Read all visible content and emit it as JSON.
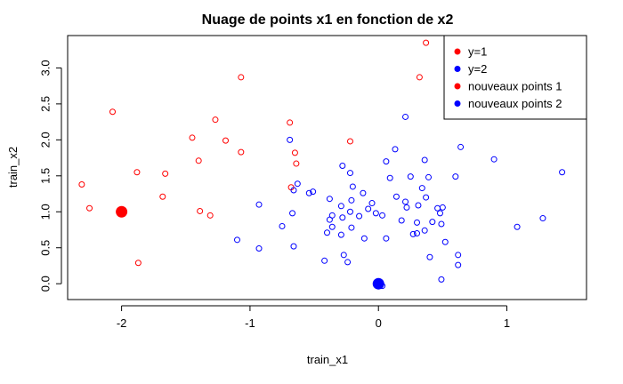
{
  "chart_data": {
    "type": "scatter",
    "title": "Nuage de points x1 en fonction de x2",
    "xlabel": "train_x1",
    "ylabel": "train_x2",
    "xlim": [
      -2.42,
      1.62
    ],
    "ylim": [
      -0.22,
      3.45
    ],
    "xticks": [
      -2,
      -1,
      0,
      1
    ],
    "xtick_labels": [
      "-2",
      "-1",
      "0",
      "1"
    ],
    "yticks": [
      0.0,
      0.5,
      1.0,
      1.5,
      2.0,
      2.5,
      3.0
    ],
    "ytick_labels": [
      "0.0",
      "0.5",
      "1.0",
      "1.5",
      "2.0",
      "2.5",
      "3.0"
    ],
    "grid": false,
    "legend_position": "top-right",
    "legend": [
      {
        "label": "y=1",
        "color": "#ff0000"
      },
      {
        "label": "y=2",
        "color": "#0000ff"
      },
      {
        "label": "nouveaux points 1",
        "color": "#ff0000"
      },
      {
        "label": "nouveaux points 2",
        "color": "#0000ff"
      }
    ],
    "series": [
      {
        "name": "y=1",
        "color": "#ff0000",
        "marker": "open-circle",
        "points": [
          [
            0.37,
            3.35
          ],
          [
            0.32,
            2.87
          ],
          [
            -1.07,
            2.87
          ],
          [
            -2.07,
            2.39
          ],
          [
            -1.27,
            2.28
          ],
          [
            -0.69,
            2.24
          ],
          [
            -1.45,
            2.03
          ],
          [
            -1.19,
            1.99
          ],
          [
            -0.22,
            1.98
          ],
          [
            -1.07,
            1.83
          ],
          [
            -0.65,
            1.82
          ],
          [
            -1.4,
            1.71
          ],
          [
            -0.64,
            1.67
          ],
          [
            -1.66,
            1.53
          ],
          [
            -1.88,
            1.55
          ],
          [
            -2.31,
            1.38
          ],
          [
            -0.68,
            1.34
          ],
          [
            -1.68,
            1.21
          ],
          [
            -2.25,
            1.05
          ],
          [
            -1.39,
            1.01
          ],
          [
            -1.31,
            0.95
          ],
          [
            -1.87,
            0.29
          ]
        ]
      },
      {
        "name": "y=2",
        "color": "#0000ff",
        "marker": "open-circle",
        "points": [
          [
            0.21,
            2.32
          ],
          [
            -0.69,
            2.0
          ],
          [
            0.64,
            1.9
          ],
          [
            0.13,
            1.87
          ],
          [
            0.9,
            1.73
          ],
          [
            0.36,
            1.72
          ],
          [
            0.06,
            1.7
          ],
          [
            -0.28,
            1.64
          ],
          [
            1.43,
            1.55
          ],
          [
            -0.22,
            1.54
          ],
          [
            0.25,
            1.49
          ],
          [
            0.39,
            1.48
          ],
          [
            0.6,
            1.49
          ],
          [
            0.09,
            1.47
          ],
          [
            -0.63,
            1.39
          ],
          [
            -0.2,
            1.35
          ],
          [
            0.34,
            1.33
          ],
          [
            -0.66,
            1.3
          ],
          [
            -0.51,
            1.28
          ],
          [
            -0.54,
            1.26
          ],
          [
            -0.12,
            1.26
          ],
          [
            0.14,
            1.21
          ],
          [
            0.37,
            1.2
          ],
          [
            -0.38,
            1.18
          ],
          [
            -0.21,
            1.16
          ],
          [
            0.21,
            1.14
          ],
          [
            -0.05,
            1.12
          ],
          [
            -0.93,
            1.1
          ],
          [
            0.31,
            1.09
          ],
          [
            -0.29,
            1.08
          ],
          [
            0.22,
            1.06
          ],
          [
            0.46,
            1.05
          ],
          [
            0.5,
            1.06
          ],
          [
            -0.08,
            1.04
          ],
          [
            -0.22,
            1.0
          ],
          [
            -0.67,
            0.98
          ],
          [
            -0.02,
            0.98
          ],
          [
            0.48,
            0.98
          ],
          [
            0.03,
            0.95
          ],
          [
            -0.36,
            0.95
          ],
          [
            -0.15,
            0.94
          ],
          [
            -0.28,
            0.92
          ],
          [
            -0.38,
            0.89
          ],
          [
            0.18,
            0.88
          ],
          [
            1.28,
            0.91
          ],
          [
            0.42,
            0.86
          ],
          [
            0.3,
            0.85
          ],
          [
            0.49,
            0.83
          ],
          [
            -0.75,
            0.8
          ],
          [
            -0.36,
            0.79
          ],
          [
            -0.21,
            0.78
          ],
          [
            1.08,
            0.79
          ],
          [
            0.36,
            0.74
          ],
          [
            -0.4,
            0.71
          ],
          [
            0.3,
            0.7
          ],
          [
            0.27,
            0.69
          ],
          [
            -0.29,
            0.68
          ],
          [
            -0.11,
            0.63
          ],
          [
            -1.1,
            0.61
          ],
          [
            0.06,
            0.63
          ],
          [
            0.52,
            0.58
          ],
          [
            -0.66,
            0.52
          ],
          [
            -0.93,
            0.49
          ],
          [
            -0.27,
            0.4
          ],
          [
            0.4,
            0.37
          ],
          [
            0.62,
            0.4
          ],
          [
            -0.42,
            0.32
          ],
          [
            -0.24,
            0.3
          ],
          [
            0.62,
            0.26
          ],
          [
            0.49,
            0.06
          ],
          [
            0.03,
            -0.03
          ]
        ]
      },
      {
        "name": "nouveaux points 1",
        "color": "#ff0000",
        "marker": "filled-circle-large",
        "points": [
          [
            -2.0,
            1.0
          ]
        ]
      },
      {
        "name": "nouveaux points 2",
        "color": "#0000ff",
        "marker": "filled-circle-large",
        "points": [
          [
            0.0,
            0.0
          ]
        ]
      }
    ]
  }
}
